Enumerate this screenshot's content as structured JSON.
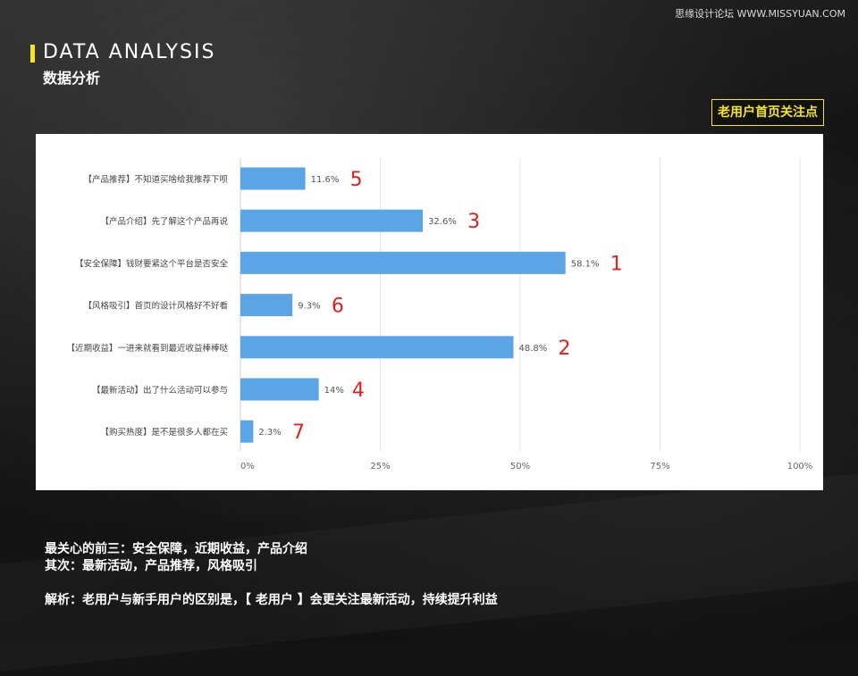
{
  "watermark": "思缘设计论坛 WWW.MISSYUAN.COM",
  "header": {
    "title_en": "DATA ANALYSIS",
    "title_cn": "数据分析"
  },
  "tag": "老用户首页关注点",
  "colors": {
    "accent": "#f5e51a",
    "bar": "#5ba5e6",
    "rank": "#e0201b",
    "grid": "#e3e3e3"
  },
  "chart_data": {
    "type": "bar",
    "orientation": "horizontal",
    "categories": [
      "【产品推荐】不知道买啥给我推荐下呗",
      "【产品介绍】先了解这个产品再说",
      "【安全保障】钱财要紧这个平台是否安全",
      "【风格吸引】首页的设计风格好不好看",
      "【近期收益】一进来就看到最近收益棒棒哒",
      "【最新活动】出了什么活动可以参与",
      "【购买热度】是不是很多人都在买"
    ],
    "values": [
      11.6,
      32.6,
      58.1,
      9.3,
      48.8,
      14,
      2.3
    ],
    "value_labels": [
      "11.6%",
      "32.6%",
      "58.1%",
      "9.3%",
      "48.8%",
      "14%",
      "2.3%"
    ],
    "ranks": [
      "5",
      "3",
      "1",
      "6",
      "2",
      "4",
      "7"
    ],
    "xlim": [
      0,
      100
    ],
    "xticks": [
      "0%",
      "25%",
      "50%",
      "75%",
      "100%"
    ],
    "grid": true
  },
  "notes": {
    "line1": "最关心的前三：安全保障，近期收益，产品介绍",
    "line2": "其次：最新活动，产品推荐，风格吸引",
    "line3": "解析：老用户与新手用户的区别是，【 老用户 】会更关注最新活动，持续提升利益"
  }
}
